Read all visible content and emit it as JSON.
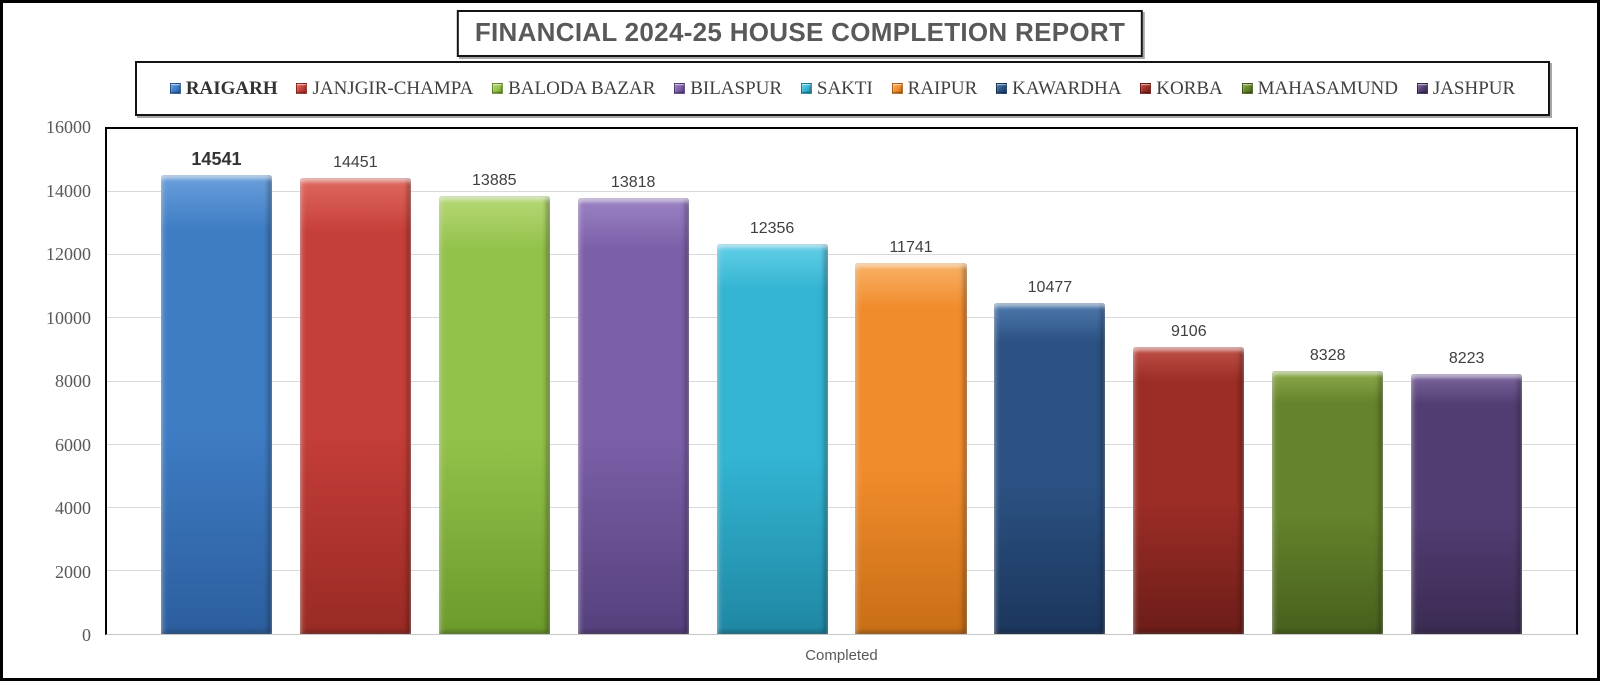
{
  "chart_data": {
    "type": "bar",
    "title": "FINANCIAL 2024-25 HOUSE COMPLETION REPORT",
    "xlabel": "Completed",
    "ylabel": "",
    "ylim": [
      0,
      16000
    ],
    "ytick_step": 2000,
    "ytick_labels": [
      "0",
      "2000",
      "4000",
      "6000",
      "8000",
      "10000",
      "12000",
      "14000",
      "16000"
    ],
    "grid": true,
    "legend_position": "top",
    "categories": [
      "Completed"
    ],
    "series": [
      {
        "name": "RAIGARH",
        "value": 14541,
        "emphasis": true,
        "color": "#3E7CC4",
        "color_light": "#6AA0DC",
        "color_dark": "#2C5E9E"
      },
      {
        "name": "JANJGIR-CHAMPA",
        "value": 14451,
        "emphasis": false,
        "color": "#C63E39",
        "color_light": "#E06A60",
        "color_dark": "#992A24"
      },
      {
        "name": "BALODA BAZAR",
        "value": 13885,
        "emphasis": false,
        "color": "#93C24A",
        "color_light": "#B7D876",
        "color_dark": "#6C9A2B"
      },
      {
        "name": "BILASPUR",
        "value": 13818,
        "emphasis": false,
        "color": "#7B5FA8",
        "color_light": "#9B82C4",
        "color_dark": "#55407C"
      },
      {
        "name": "SAKTI",
        "value": 12356,
        "emphasis": false,
        "color": "#32B4D2",
        "color_light": "#63CFE8",
        "color_dark": "#1F87A3"
      },
      {
        "name": "RAIPUR",
        "value": 11741,
        "emphasis": false,
        "color": "#F18C2D",
        "color_light": "#F9B266",
        "color_dark": "#C86E15"
      },
      {
        "name": "KAWARDHA",
        "value": 10477,
        "emphasis": false,
        "color": "#2B5182",
        "color_light": "#4F7AAE",
        "color_dark": "#1B365C"
      },
      {
        "name": "KORBA",
        "value": 9106,
        "emphasis": false,
        "color": "#9B2C26",
        "color_light": "#C05147",
        "color_dark": "#6C1D18"
      },
      {
        "name": "MAHASAMUND",
        "value": 8328,
        "emphasis": false,
        "color": "#64832B",
        "color_light": "#8FAC4D",
        "color_dark": "#47601D"
      },
      {
        "name": "JASHPUR",
        "value": 8223,
        "emphasis": false,
        "color": "#523D72",
        "color_light": "#7A659E",
        "color_dark": "#3A2B52"
      }
    ]
  },
  "colors": {
    "frame_border": "#000000",
    "grid": "#D9D9D9",
    "axis_line": "#000000",
    "tick_text": "#595959",
    "value_text": "#404040",
    "title_text": "#595959",
    "legend_text": "#404040"
  }
}
